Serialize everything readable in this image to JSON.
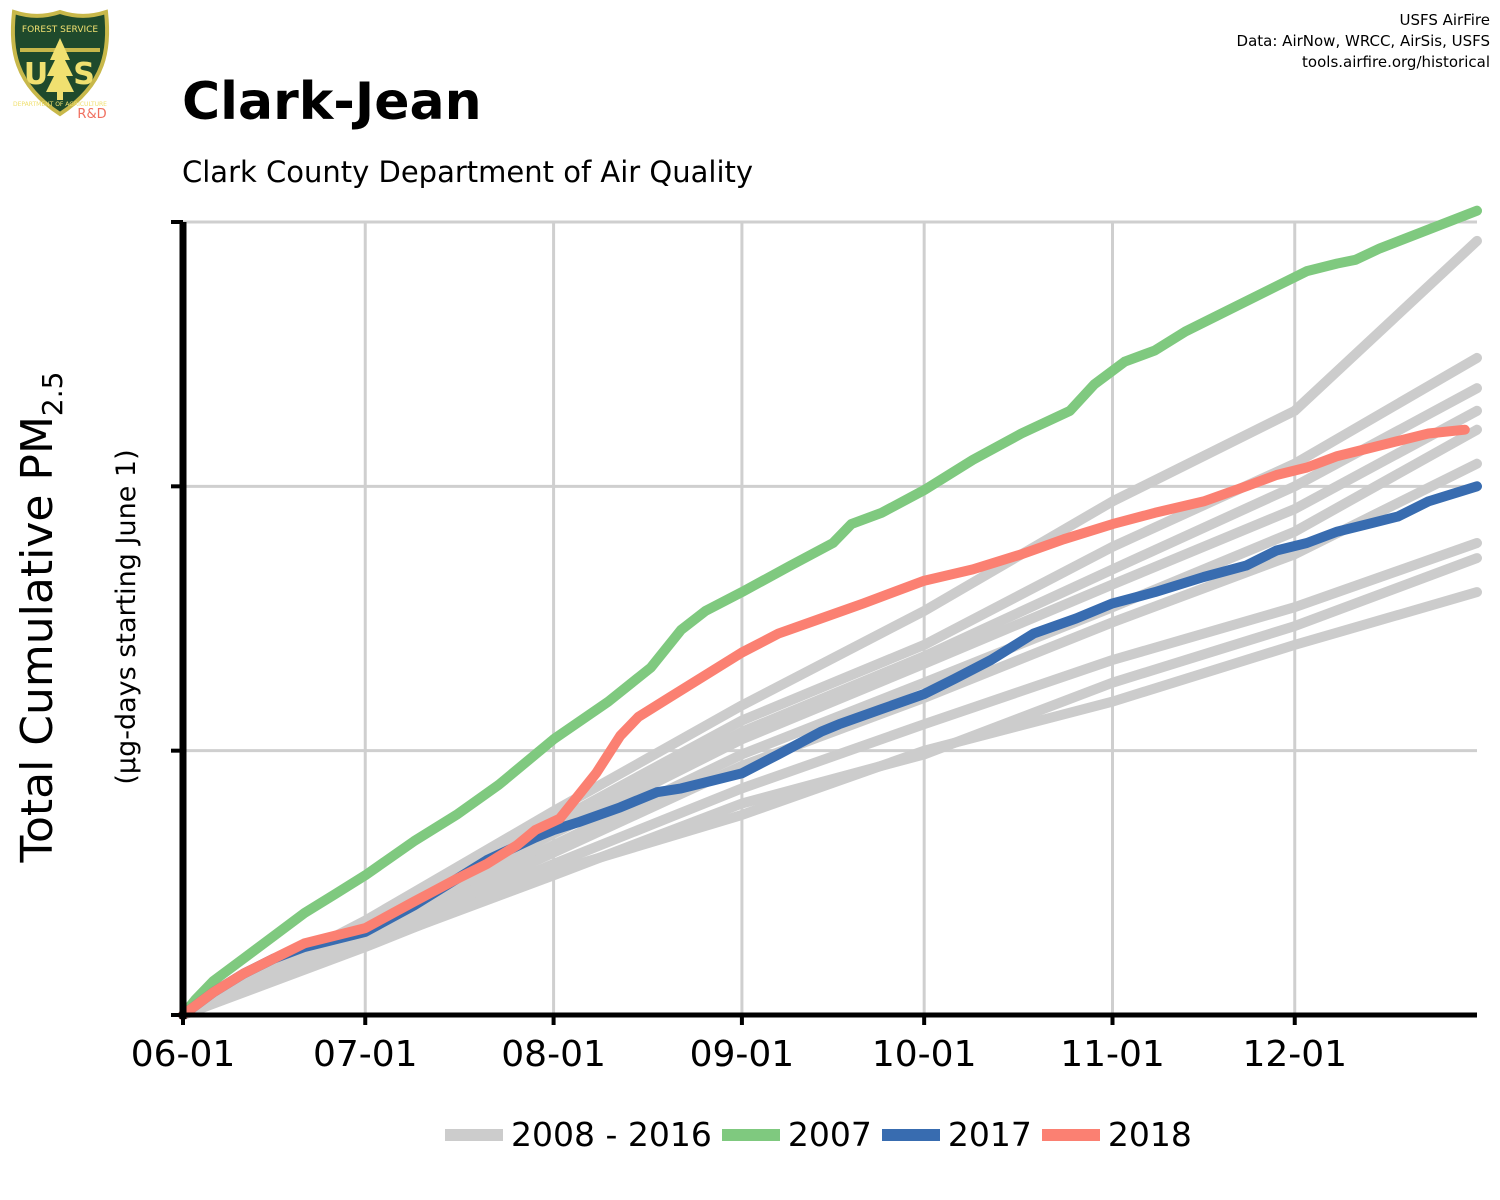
{
  "header": {
    "title": "Clark-Jean",
    "subtitle": "Clark County Department of Air Quality",
    "credits": [
      "USFS AirFire",
      "Data: AirNow, WRCC, AirSis, USFS",
      "tools.airfire.org/historical"
    ]
  },
  "logo": {
    "text_top": "FOREST SERVICE",
    "text_main_left": "U",
    "text_main_right": "S",
    "text_bottom": "DEPARTMENT OF AGRICULTURE",
    "tag": "R&D"
  },
  "colors": {
    "background_years": "#cccccc",
    "year_2007": "#7fc97f",
    "year_2017": "#386cb0",
    "year_2018": "#fb8072",
    "grid": "#cfcfcf",
    "axis": "#000000"
  },
  "chart_data": {
    "type": "line",
    "title": "Clark-Jean",
    "subtitle": "Clark County Department of Air Quality",
    "ylabel": "Total Cumulative PM",
    "ylabel_subscript": "2.5",
    "ylabel_secondary": "(µg-days starting June 1)",
    "x_tick_labels": [
      "06-01",
      "07-01",
      "08-01",
      "09-01",
      "10-01",
      "11-01",
      "12-01"
    ],
    "x_tick_days": [
      0,
      30,
      61,
      92,
      122,
      153,
      183
    ],
    "xlim": [
      0,
      213
    ],
    "ylim": [
      0,
      1050
    ],
    "y_ticks": [
      0,
      350,
      700,
      1050
    ],
    "y_tick_labels_shown": false,
    "grid": true,
    "legend": {
      "placement": "bottom",
      "entries": [
        "2008 - 2016",
        "2007",
        "2017",
        "2018"
      ]
    },
    "series": [
      {
        "name": "2008 - 2016",
        "group": "background",
        "x": [
          0,
          30,
          61,
          92,
          122,
          153,
          183,
          213
        ],
        "values": [
          0,
          125,
          270,
          410,
          535,
          680,
          800,
          1025
        ]
      },
      {
        "group": "background",
        "x": [
          0,
          30,
          61,
          92,
          122,
          153,
          183,
          213
        ],
        "values": [
          0,
          118,
          255,
          390,
          490,
          620,
          730,
          870
        ]
      },
      {
        "group": "background",
        "x": [
          0,
          30,
          61,
          92,
          122,
          153,
          183,
          213
        ],
        "values": [
          0,
          112,
          245,
          375,
          475,
          590,
          700,
          830
        ]
      },
      {
        "group": "background",
        "x": [
          0,
          30,
          61,
          92,
          122,
          153,
          183,
          213
        ],
        "values": [
          0,
          110,
          240,
          365,
          465,
          570,
          670,
          800
        ]
      },
      {
        "group": "background",
        "x": [
          0,
          30,
          61,
          92,
          122,
          153,
          183,
          213
        ],
        "values": [
          0,
          105,
          225,
          345,
          440,
          540,
          640,
          775
        ]
      },
      {
        "group": "background",
        "x": [
          0,
          30,
          61,
          92,
          122,
          153,
          183,
          213
        ],
        "values": [
          0,
          100,
          215,
          330,
          420,
          520,
          610,
          730
        ]
      },
      {
        "group": "background",
        "x": [
          0,
          30,
          61,
          92,
          122,
          153,
          183,
          213
        ],
        "values": [
          0,
          95,
          200,
          300,
          385,
          470,
          540,
          625
        ]
      },
      {
        "group": "background",
        "x": [
          0,
          30,
          61,
          92,
          122,
          153,
          183,
          213
        ],
        "values": [
          0,
          92,
          185,
          280,
          345,
          440,
          515,
          605
        ]
      },
      {
        "group": "background",
        "x": [
          0,
          30,
          61,
          92,
          122,
          153,
          183,
          213
        ],
        "values": [
          0,
          90,
          190,
          265,
          350,
          415,
          490,
          560
        ]
      },
      {
        "name": "2007",
        "x": [
          0,
          2,
          5,
          10,
          15,
          20,
          25,
          30,
          38,
          45,
          52,
          61,
          70,
          77,
          82,
          86,
          92,
          100,
          107,
          110,
          115,
          122,
          130,
          138,
          146,
          150,
          155,
          160,
          165,
          170,
          180,
          185,
          190,
          193,
          197,
          205,
          213
        ],
        "values": [
          0,
          20,
          45,
          75,
          105,
          135,
          160,
          185,
          230,
          265,
          305,
          365,
          415,
          460,
          510,
          535,
          560,
          595,
          625,
          650,
          665,
          695,
          735,
          770,
          800,
          835,
          865,
          880,
          905,
          925,
          965,
          985,
          995,
          1000,
          1015,
          1040,
          1065
        ]
      },
      {
        "name": "2017",
        "x": [
          0,
          5,
          10,
          15,
          20,
          30,
          38,
          45,
          50,
          58,
          61,
          65,
          72,
          78,
          82,
          87,
          92,
          98,
          105,
          108,
          115,
          122,
          127,
          133,
          140,
          147,
          153,
          160,
          168,
          175,
          180,
          185,
          190,
          195,
          200,
          205,
          213
        ],
        "values": [
          0,
          30,
          55,
          75,
          90,
          110,
          145,
          180,
          205,
          235,
          245,
          255,
          275,
          295,
          300,
          310,
          320,
          345,
          375,
          385,
          405,
          425,
          445,
          470,
          505,
          525,
          545,
          560,
          580,
          595,
          615,
          625,
          640,
          650,
          660,
          680,
          700
        ]
      },
      {
        "name": "2018",
        "x": [
          0,
          5,
          10,
          15,
          20,
          30,
          38,
          45,
          50,
          55,
          58,
          62,
          65,
          68,
          72,
          75,
          80,
          87,
          92,
          98,
          105,
          112,
          122,
          130,
          138,
          145,
          153,
          160,
          168,
          175,
          180,
          185,
          190,
          195,
          200,
          205,
          211
        ],
        "values": [
          0,
          30,
          55,
          75,
          95,
          115,
          150,
          180,
          200,
          225,
          245,
          260,
          290,
          320,
          370,
          395,
          420,
          455,
          480,
          505,
          525,
          545,
          575,
          590,
          610,
          630,
          650,
          665,
          680,
          700,
          715,
          725,
          740,
          750,
          760,
          770,
          775
        ]
      }
    ]
  }
}
